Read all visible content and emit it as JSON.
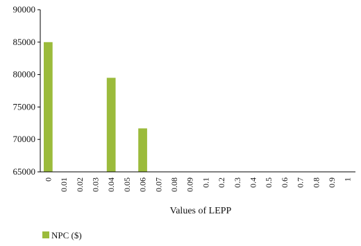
{
  "chart_data": {
    "type": "bar",
    "title": "",
    "xlabel": "Values of LEPP",
    "ylabel": "",
    "categories": [
      "0",
      "0.01",
      "0.02",
      "0.03",
      "0.04",
      "0.05",
      "0.06",
      "0.07",
      "0.08",
      "0.09",
      "0.1",
      "0.2",
      "0.3",
      "0.4",
      "0.5",
      "0.6",
      "0.7",
      "0.8",
      "0.9",
      "1"
    ],
    "series": [
      {
        "name": "NPC ($)",
        "color": "#9bbb3b",
        "values": [
          85000,
          null,
          null,
          null,
          79500,
          null,
          71700,
          null,
          null,
          null,
          null,
          null,
          null,
          null,
          null,
          null,
          null,
          null,
          null,
          null
        ]
      }
    ],
    "ylim": [
      65000,
      90000
    ],
    "yticks": [
      "65000",
      "70000",
      "75000",
      "80000",
      "85000",
      "90000"
    ],
    "grid": false,
    "legend_position": "bottom-left"
  }
}
